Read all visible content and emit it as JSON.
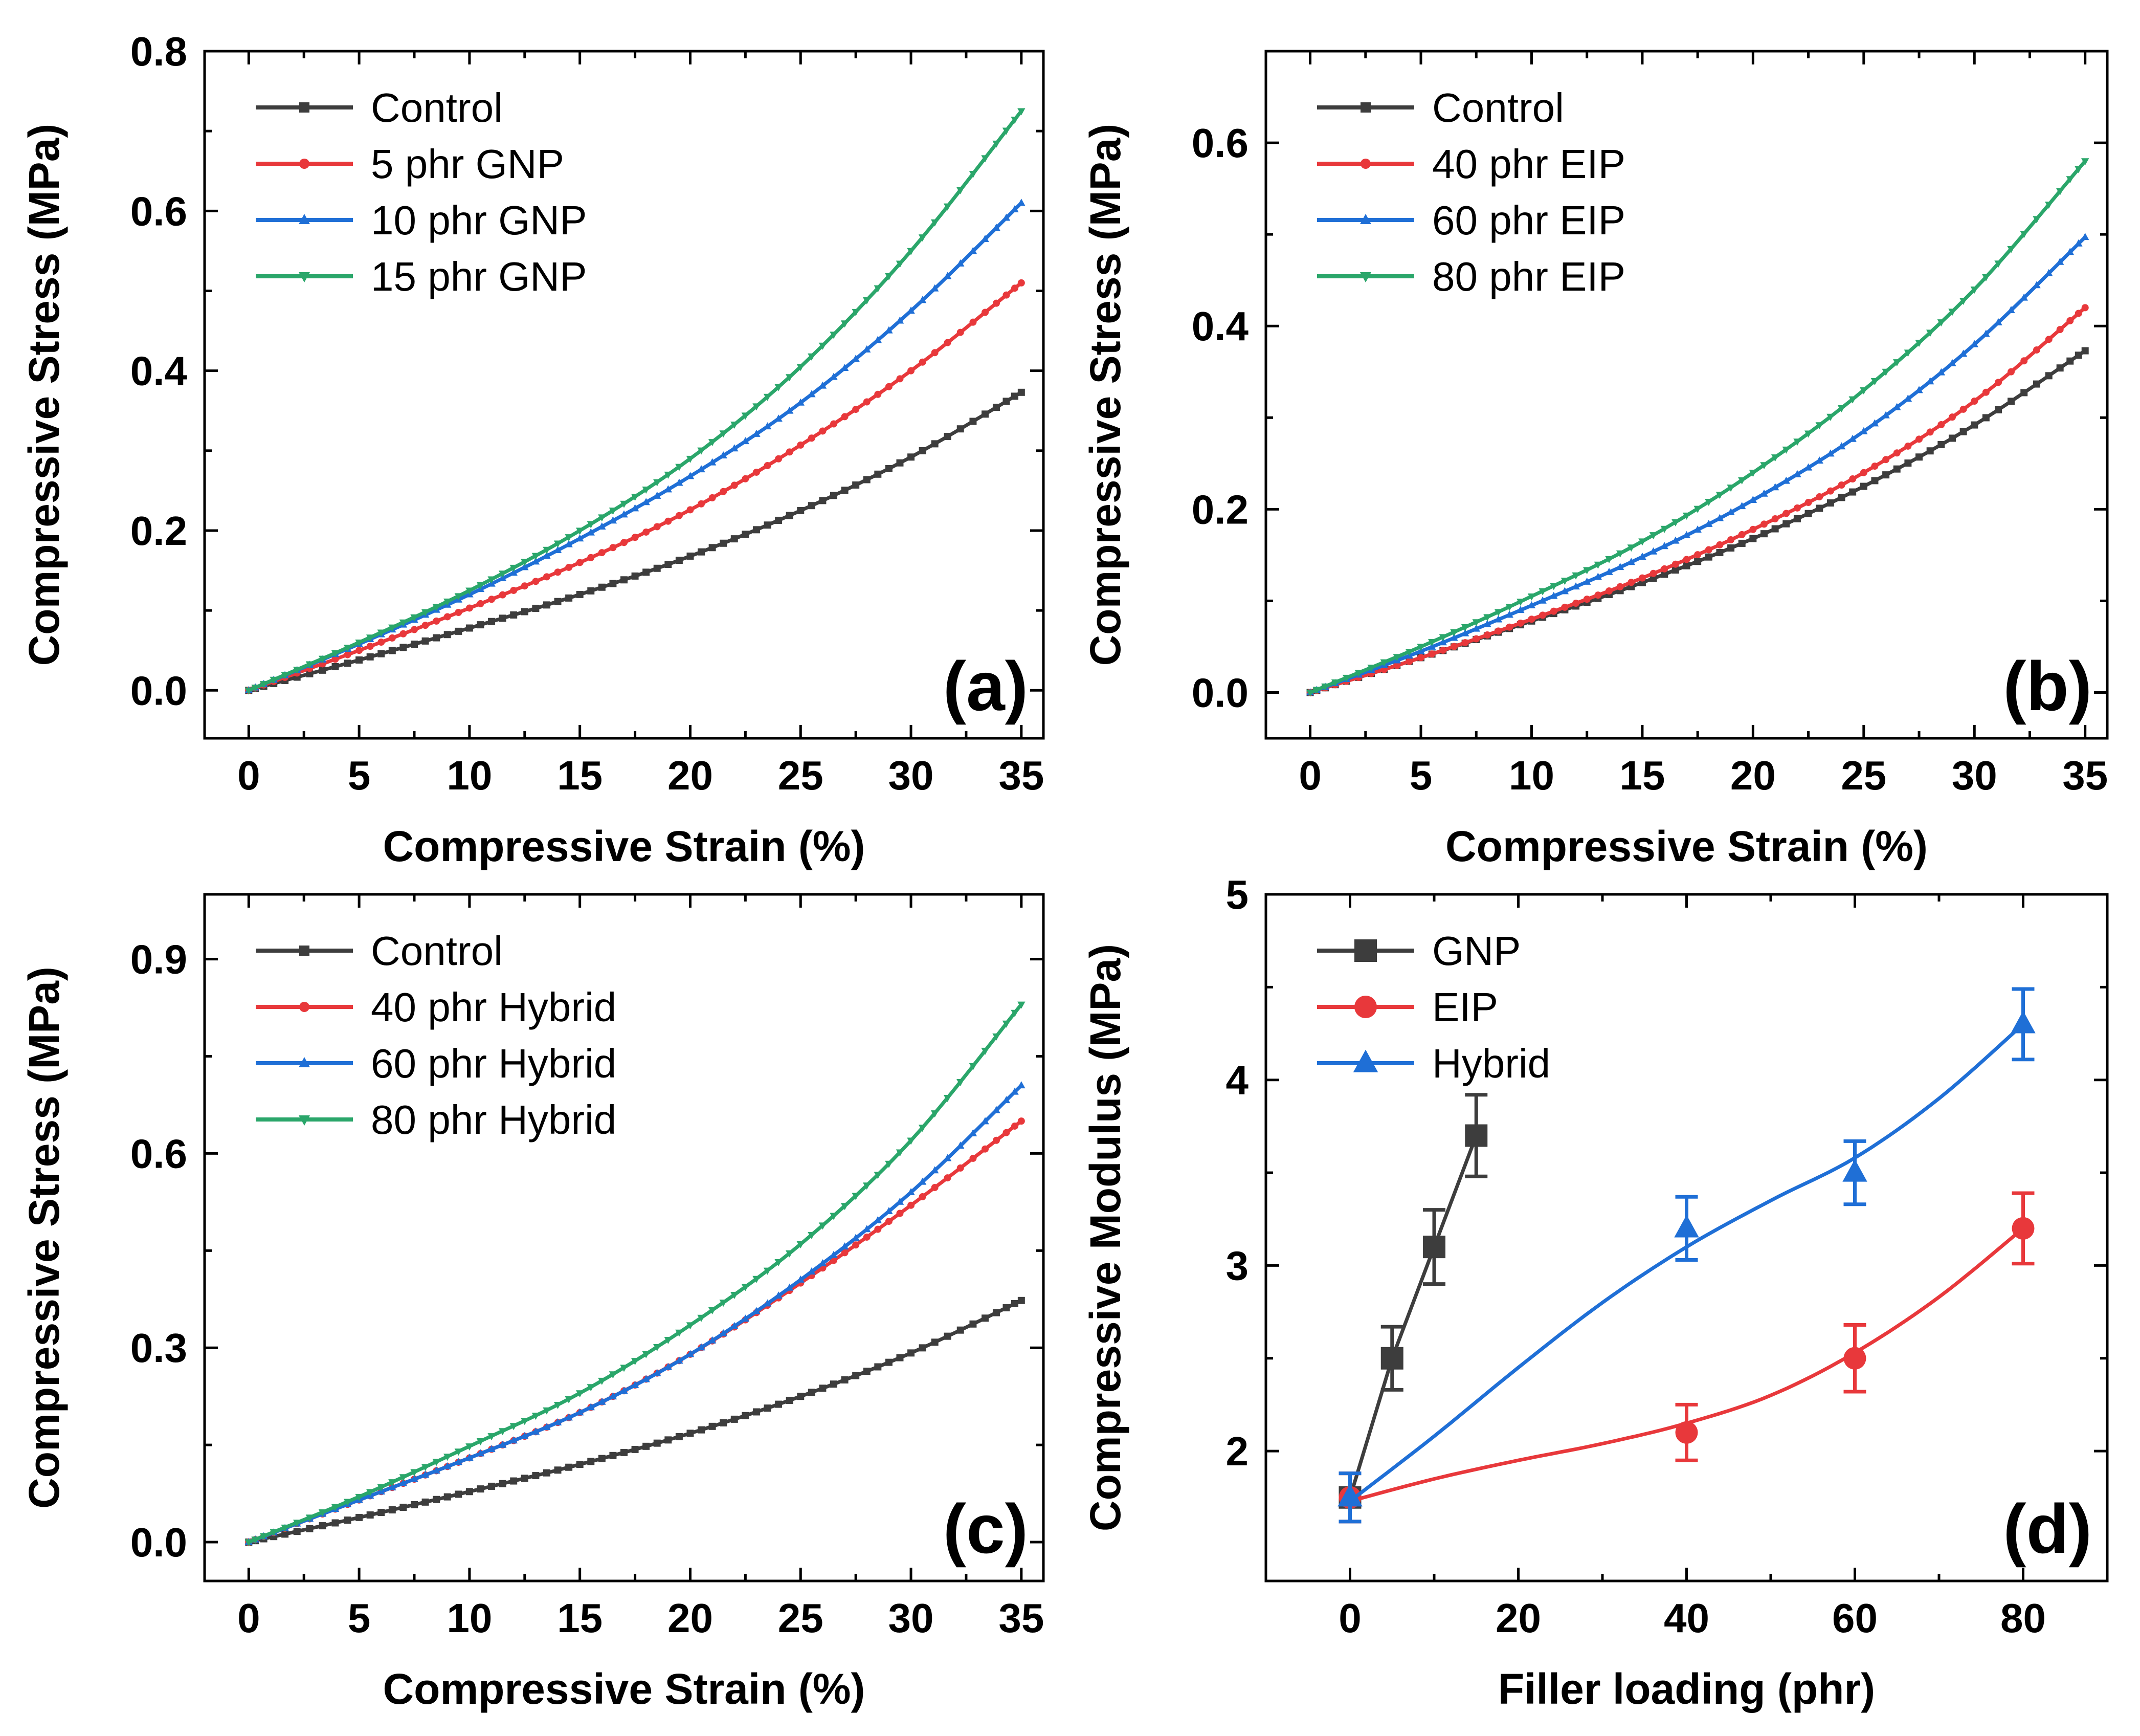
{
  "colors": {
    "control": "#3d3d3d",
    "gnp": "#3d3d3d",
    "red": "#e8383b",
    "blue": "#1f6fd6",
    "green": "#2aa66a"
  },
  "chart_data": [
    {
      "id": "a",
      "type": "line",
      "panel_label": "(a)",
      "xlabel": "Compressive Strain (%)",
      "ylabel": "Compressive Stress (MPa)",
      "xlim": [
        -2,
        36
      ],
      "ylim": [
        -0.06,
        0.8
      ],
      "xticks": [
        0,
        5,
        10,
        15,
        20,
        25,
        30,
        35
      ],
      "yticks": [
        0.0,
        0.2,
        0.4,
        0.6,
        0.8
      ],
      "ytick_labels": [
        "0.0",
        "0.2",
        "0.4",
        "0.6",
        "0.8"
      ],
      "legend": "top-left",
      "series": [
        {
          "name": "Control",
          "color": "#3d3d3d",
          "marker": "square",
          "x": [
            0,
            5,
            10,
            15,
            20,
            25,
            30,
            35
          ],
          "y": [
            0,
            0.038,
            0.078,
            0.12,
            0.168,
            0.225,
            0.292,
            0.373
          ]
        },
        {
          "name": "5 phr GNP",
          "color": "#e8383b",
          "marker": "circle",
          "x": [
            0,
            5,
            10,
            15,
            20,
            25,
            30,
            35
          ],
          "y": [
            0,
            0.05,
            0.103,
            0.16,
            0.226,
            0.307,
            0.4,
            0.51
          ]
        },
        {
          "name": "10 phr GNP",
          "color": "#1f6fd6",
          "marker": "triangle-up",
          "x": [
            0,
            5,
            10,
            15,
            20,
            25,
            30,
            35
          ],
          "y": [
            0,
            0.058,
            0.12,
            0.19,
            0.268,
            0.36,
            0.475,
            0.61
          ]
        },
        {
          "name": "15 phr GNP",
          "color": "#2aa66a",
          "marker": "triangle-down",
          "x": [
            0,
            5,
            10,
            15,
            20,
            25,
            30,
            35
          ],
          "y": [
            0,
            0.06,
            0.125,
            0.2,
            0.29,
            0.405,
            0.55,
            0.725
          ]
        }
      ]
    },
    {
      "id": "b",
      "type": "line",
      "panel_label": "(b)",
      "xlabel": "Compressive Strain (%)",
      "ylabel": "Compressive Stress (MPa)",
      "xlim": [
        -2,
        36
      ],
      "ylim": [
        -0.05,
        0.7
      ],
      "xticks": [
        0,
        5,
        10,
        15,
        20,
        25,
        30,
        35
      ],
      "yticks": [
        0.0,
        0.2,
        0.4,
        0.6
      ],
      "ytick_labels": [
        "0.0",
        "0.2",
        "0.4",
        "0.6"
      ],
      "legend": "top-left",
      "series": [
        {
          "name": "Control",
          "color": "#3d3d3d",
          "marker": "square",
          "x": [
            0,
            5,
            10,
            15,
            20,
            25,
            30,
            35
          ],
          "y": [
            0,
            0.038,
            0.078,
            0.12,
            0.168,
            0.225,
            0.292,
            0.373
          ]
        },
        {
          "name": "40 phr EIP",
          "color": "#e8383b",
          "marker": "circle",
          "x": [
            0,
            5,
            10,
            15,
            20,
            25,
            30,
            35
          ],
          "y": [
            0,
            0.038,
            0.08,
            0.125,
            0.178,
            0.24,
            0.318,
            0.42
          ]
        },
        {
          "name": "60 phr EIP",
          "color": "#1f6fd6",
          "marker": "triangle-up",
          "x": [
            0,
            5,
            10,
            15,
            20,
            25,
            30,
            35
          ],
          "y": [
            0,
            0.045,
            0.095,
            0.148,
            0.21,
            0.285,
            0.38,
            0.497
          ]
        },
        {
          "name": "80 phr EIP",
          "color": "#2aa66a",
          "marker": "triangle-down",
          "x": [
            0,
            5,
            10,
            15,
            20,
            25,
            30,
            35
          ],
          "y": [
            0,
            0.05,
            0.105,
            0.165,
            0.24,
            0.33,
            0.44,
            0.58
          ]
        }
      ]
    },
    {
      "id": "c",
      "type": "line",
      "panel_label": "(c)",
      "xlabel": "Compressive Strain (%)",
      "ylabel": "Compressive Stress (MPa)",
      "xlim": [
        -2,
        36
      ],
      "ylim": [
        -0.06,
        1.0
      ],
      "xticks": [
        0,
        5,
        10,
        15,
        20,
        25,
        30,
        35
      ],
      "yticks": [
        0.0,
        0.3,
        0.6,
        0.9
      ],
      "ytick_labels": [
        "0.0",
        "0.3",
        "0.6",
        "0.9"
      ],
      "legend": "top-left",
      "series": [
        {
          "name": "Control",
          "color": "#3d3d3d",
          "marker": "square",
          "x": [
            0,
            5,
            10,
            15,
            20,
            25,
            30,
            35
          ],
          "y": [
            0,
            0.038,
            0.078,
            0.12,
            0.168,
            0.225,
            0.292,
            0.373
          ]
        },
        {
          "name": "40 phr Hybrid",
          "color": "#e8383b",
          "marker": "circle",
          "x": [
            0,
            5,
            10,
            15,
            20,
            25,
            30,
            35
          ],
          "y": [
            0,
            0.065,
            0.13,
            0.2,
            0.29,
            0.4,
            0.52,
            0.65
          ]
        },
        {
          "name": "60 phr Hybrid",
          "color": "#1f6fd6",
          "marker": "triangle-up",
          "x": [
            0,
            5,
            10,
            15,
            20,
            25,
            30,
            35
          ],
          "y": [
            0,
            0.065,
            0.13,
            0.2,
            0.29,
            0.405,
            0.54,
            0.705
          ]
        },
        {
          "name": "80 phr Hybrid",
          "color": "#2aa66a",
          "marker": "triangle-down",
          "x": [
            0,
            5,
            10,
            15,
            20,
            25,
            30,
            35
          ],
          "y": [
            0,
            0.07,
            0.148,
            0.23,
            0.335,
            0.46,
            0.62,
            0.83
          ]
        }
      ]
    },
    {
      "id": "d",
      "type": "scatter",
      "panel_label": "(d)",
      "xlabel": "Filler loading (phr)",
      "ylabel": "Compressive Modulus (MPa)",
      "xlim": [
        -10,
        90
      ],
      "ylim": [
        1.3,
        5.0
      ],
      "xticks": [
        0,
        20,
        40,
        60,
        80
      ],
      "yticks": [
        2,
        3,
        4,
        5
      ],
      "ytick_labels": [
        "2",
        "3",
        "4",
        "5"
      ],
      "legend": "top-left",
      "series": [
        {
          "name": "GNP",
          "color": "#3d3d3d",
          "marker": "square",
          "x": [
            0,
            5,
            10,
            15
          ],
          "y": [
            1.75,
            2.5,
            3.1,
            3.7
          ],
          "err": [
            0.13,
            0.17,
            0.2,
            0.22
          ],
          "fit": "linear"
        },
        {
          "name": "EIP",
          "color": "#e8383b",
          "marker": "circle",
          "x": [
            0,
            40,
            60,
            80
          ],
          "y": [
            1.75,
            2.1,
            2.5,
            3.2
          ],
          "err": [
            0.13,
            0.15,
            0.18,
            0.19
          ],
          "fit": "smooth",
          "fit_x": [
            0,
            10,
            20,
            30,
            40,
            50,
            60,
            70,
            80
          ],
          "fit_y": [
            1.73,
            1.85,
            1.95,
            2.04,
            2.15,
            2.3,
            2.53,
            2.83,
            3.2
          ]
        },
        {
          "name": "Hybrid",
          "color": "#1f6fd6",
          "marker": "triangle-up",
          "x": [
            0,
            40,
            60,
            80
          ],
          "y": [
            1.75,
            3.2,
            3.5,
            4.3
          ],
          "err": [
            0.13,
            0.17,
            0.17,
            0.19
          ],
          "fit": "smooth",
          "fit_x": [
            0,
            10,
            20,
            30,
            40,
            50,
            60,
            70,
            80
          ],
          "fit_y": [
            1.73,
            2.08,
            2.45,
            2.8,
            3.1,
            3.35,
            3.58,
            3.9,
            4.3
          ]
        }
      ]
    }
  ]
}
